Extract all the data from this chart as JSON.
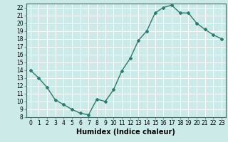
{
  "title": "",
  "xlabel": "Humidex (Indice chaleur)",
  "ylabel": "",
  "x": [
    0,
    1,
    2,
    3,
    4,
    5,
    6,
    7,
    8,
    9,
    10,
    11,
    12,
    13,
    14,
    15,
    16,
    17,
    18,
    19,
    20,
    21,
    22,
    23
  ],
  "y": [
    14.0,
    13.0,
    11.8,
    10.2,
    9.6,
    9.0,
    8.5,
    8.3,
    10.3,
    10.0,
    11.5,
    13.9,
    15.5,
    17.8,
    19.0,
    21.3,
    22.0,
    22.3,
    21.3,
    21.3,
    20.0,
    19.2,
    18.5,
    18.0
  ],
  "line_color": "#2d7a6e",
  "marker": "D",
  "marker_size": 2.0,
  "line_width": 1.0,
  "bg_color": "#cceae7",
  "grid_color": "#ffffff",
  "ylim": [
    8,
    22.5
  ],
  "xlim": [
    -0.5,
    23.5
  ],
  "yticks": [
    8,
    9,
    10,
    11,
    12,
    13,
    14,
    15,
    16,
    17,
    18,
    19,
    20,
    21,
    22
  ],
  "xticks": [
    0,
    1,
    2,
    3,
    4,
    5,
    6,
    7,
    8,
    9,
    10,
    11,
    12,
    13,
    14,
    15,
    16,
    17,
    18,
    19,
    20,
    21,
    22,
    23
  ],
  "tick_fontsize": 5.5,
  "xlabel_fontsize": 7,
  "spine_color": "#2d7a6e"
}
